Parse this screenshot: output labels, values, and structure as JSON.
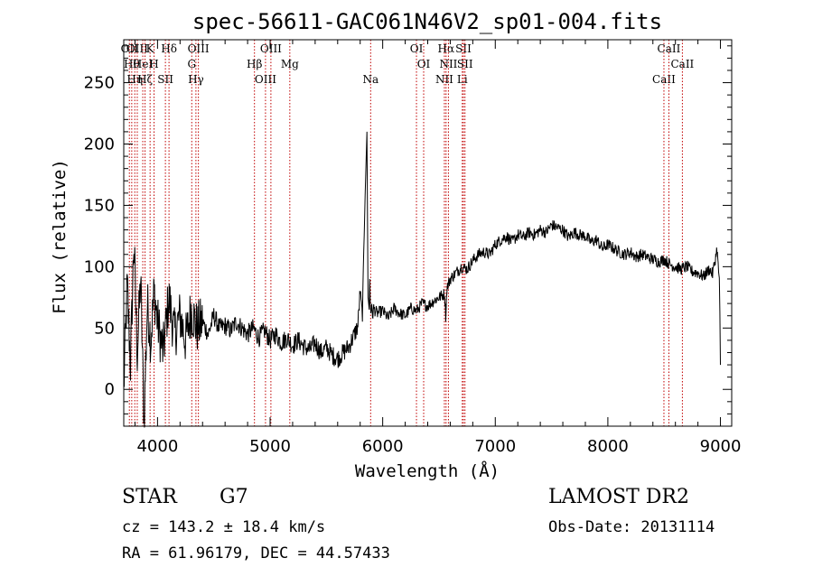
{
  "chart_data": {
    "type": "line",
    "title": "spec-56611-GAC061N46V2_sp01-004.fits",
    "xlabel": "Wavelength (Å)",
    "ylabel": "Flux (relative)",
    "xlim": [
      3700,
      9100
    ],
    "ylim": [
      -30,
      285
    ],
    "xticks": [
      4000,
      5000,
      6000,
      7000,
      8000,
      9000
    ],
    "xtick_labels": [
      "4000",
      "5000",
      "6000",
      "7000",
      "8000",
      "9000"
    ],
    "yticks": [
      0,
      50,
      100,
      150,
      200,
      250
    ],
    "ytick_labels": [
      "0",
      "50",
      "100",
      "150",
      "200",
      "250"
    ],
    "grid": false,
    "series": [
      {
        "name": "spectrum",
        "x": [
          3700,
          3730,
          3760,
          3790,
          3820,
          3850,
          3880,
          3910,
          3940,
          3970,
          4000,
          4050,
          4100,
          4150,
          4200,
          4250,
          4300,
          4350,
          4400,
          4450,
          4500,
          4550,
          4600,
          4650,
          4700,
          4750,
          4800,
          4850,
          4900,
          4950,
          5000,
          5050,
          5100,
          5150,
          5200,
          5250,
          5300,
          5350,
          5400,
          5450,
          5500,
          5550,
          5600,
          5650,
          5700,
          5750,
          5780,
          5800,
          5820,
          5840,
          5860,
          5870,
          5880,
          5885,
          5890,
          5895,
          5900,
          5910,
          5920,
          5950,
          6000,
          6050,
          6100,
          6150,
          6200,
          6250,
          6300,
          6350,
          6400,
          6450,
          6500,
          6550,
          6560,
          6570,
          6580,
          6600,
          6650,
          6700,
          6750,
          6800,
          6850,
          6900,
          6950,
          7000,
          7050,
          7100,
          7150,
          7200,
          7250,
          7300,
          7350,
          7400,
          7450,
          7500,
          7550,
          7600,
          7650,
          7700,
          7750,
          7800,
          7850,
          7900,
          7950,
          8000,
          8050,
          8100,
          8150,
          8200,
          8250,
          8300,
          8350,
          8400,
          8450,
          8500,
          8550,
          8600,
          8650,
          8700,
          8750,
          8800,
          8850,
          8900,
          8930,
          8950,
          8970,
          8980,
          8990,
          8995,
          9000
        ],
        "y": [
          0,
          85,
          20,
          120,
          30,
          90,
          -25,
          70,
          40,
          80,
          55,
          30,
          75,
          45,
          60,
          40,
          65,
          50,
          55,
          45,
          60,
          50,
          52,
          48,
          55,
          50,
          45,
          50,
          42,
          48,
          40,
          45,
          38,
          42,
          36,
          40,
          35,
          32,
          38,
          30,
          34,
          28,
          25,
          30,
          35,
          45,
          52,
          80,
          60,
          145,
          210,
          75,
          65,
          90,
          70,
          62,
          68,
          60,
          66,
          62,
          64,
          58,
          66,
          62,
          60,
          66,
          64,
          70,
          68,
          72,
          75,
          78,
          60,
          82,
          85,
          90,
          95,
          100,
          98,
          105,
          110,
          112,
          110,
          118,
          122,
          125,
          120,
          126,
          124,
          128,
          126,
          130,
          128,
          134,
          132,
          130,
          124,
          128,
          126,
          125,
          120,
          122,
          115,
          118,
          115,
          112,
          110,
          112,
          108,
          110,
          108,
          106,
          104,
          106,
          102,
          100,
          98,
          100,
          96,
          95,
          92,
          98,
          94,
          104,
          115,
          100,
          90,
          60,
          20
        ]
      }
    ],
    "line_marks": [
      {
        "wl": 3750,
        "label": "OII"
      },
      {
        "wl": 3771,
        "label": "Hθ"
      },
      {
        "wl": 3798,
        "label": "Hη"
      },
      {
        "wl": 3820,
        "label": "OIII"
      },
      {
        "wl": 3869,
        "label": "HeI"
      },
      {
        "wl": 3889,
        "label": "Hζ"
      },
      {
        "wl": 3934,
        "label": "K"
      },
      {
        "wl": 3969,
        "label": "H"
      },
      {
        "wl": 4070,
        "label": "SII"
      },
      {
        "wl": 4102,
        "label": "Hδ"
      },
      {
        "wl": 4304,
        "label": "G"
      },
      {
        "wl": 4341,
        "label": "Hγ"
      },
      {
        "wl": 4363,
        "label": "OIII"
      },
      {
        "wl": 4861,
        "label": "Hβ"
      },
      {
        "wl": 4959,
        "label": "OIII"
      },
      {
        "wl": 5007,
        "label": "OIII"
      },
      {
        "wl": 5175,
        "label": "Mg"
      },
      {
        "wl": 5893,
        "label": "Na"
      },
      {
        "wl": 6300,
        "label": "OI"
      },
      {
        "wl": 6364,
        "label": "OI"
      },
      {
        "wl": 6548,
        "label": "NII"
      },
      {
        "wl": 6563,
        "label": "Hα"
      },
      {
        "wl": 6584,
        "label": "NII"
      },
      {
        "wl": 6707,
        "label": "Li"
      },
      {
        "wl": 6717,
        "label": "SII"
      },
      {
        "wl": 6731,
        "label": "SII"
      },
      {
        "wl": 8498,
        "label": "CaII"
      },
      {
        "wl": 8542,
        "label": "CaII"
      },
      {
        "wl": 8662,
        "label": "CaII"
      }
    ],
    "colors": {
      "spectrum": "#000000",
      "line_marks": "#c00000",
      "axes": "#000000"
    }
  },
  "info": {
    "object_class": "STAR",
    "subclass": "G7",
    "survey": "LAMOST DR2",
    "cz": "cz = 143.2 ± 18.4 km/s",
    "obs_date": "Obs-Date: 20131114",
    "coords": "RA =  61.96179, DEC =  44.57433"
  }
}
